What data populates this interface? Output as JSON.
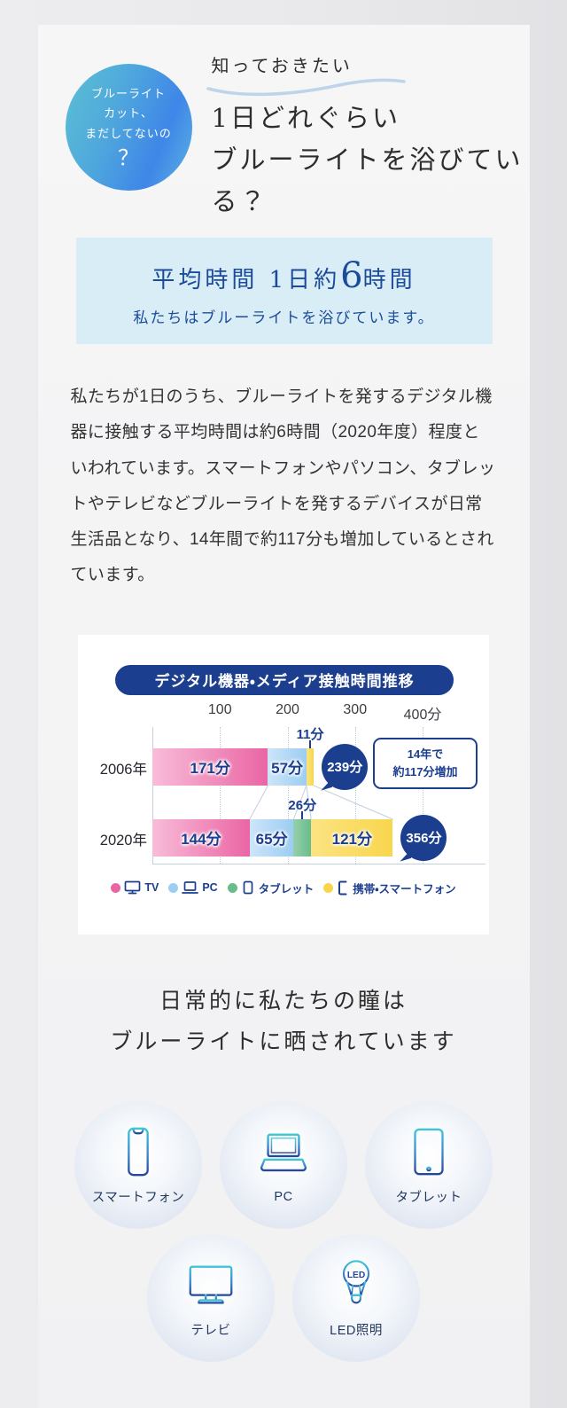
{
  "badge": {
    "line1": "ブルーライト",
    "line2": "カット、",
    "line3": "まだしてないの",
    "mark": "？"
  },
  "header": {
    "kicker": "知っておきたい",
    "title": "1日どれぐらい\nブルーライトを浴びている？"
  },
  "average_box": {
    "title_pre": "平均時間 1日約",
    "title_num": "6",
    "title_post": "時間",
    "subtitle": "私たちはブルーライトを浴びています。"
  },
  "body_paragraph": "私たちが1日のうち、ブルーライトを発するデジタル機器に接触する平均時間は約6時間（2020年度）程度といわれています。スマートフォンやパソコン、タブレットやテレビなどブルーライトを発するデバイスが日常生活品となり、14年間で約117分も増加しているとされています。",
  "chart_data": {
    "type": "bar",
    "stacked": true,
    "orientation": "horizontal",
    "title": "デジタル機器・メディア接触時間推移",
    "unit": "分",
    "xlim": [
      0,
      400
    ],
    "x_ticks": [
      100,
      200,
      300,
      400
    ],
    "categories": [
      "2006年",
      "2020年"
    ],
    "series": [
      {
        "name": "TV",
        "icon": "tv-icon",
        "color": "#ea65a4",
        "color_light": "#f8bcd8",
        "values": [
          171,
          144
        ]
      },
      {
        "name": "PC",
        "icon": "laptop-icon",
        "color": "#9ccdf2",
        "color_light": "#cde5f9",
        "values": [
          57,
          65
        ]
      },
      {
        "name": "タブレット",
        "icon": "tablet-icon",
        "color": "#69bc8c",
        "color_light": "#96cfad",
        "values": [
          0,
          26
        ]
      },
      {
        "name": "携帯・スマートフォン",
        "icon": "phone-icon",
        "color": "#f8d64c",
        "color_light": "#fbe382",
        "values": [
          11,
          121
        ]
      }
    ],
    "totals": [
      239,
      356
    ],
    "annotation": {
      "line1": "14年で",
      "line2": "約117分増加"
    }
  },
  "exposure": {
    "heading": "日常的に私たちの瞳は\nブルーライトに晒されています"
  },
  "devices": {
    "led_text": "LED",
    "items": [
      {
        "label": "スマートフォン",
        "icon": "smartphone-icon"
      },
      {
        "label": "PC",
        "icon": "laptop-icon"
      },
      {
        "label": "タブレット",
        "icon": "tablet-icon"
      },
      {
        "label": "テレビ",
        "icon": "tv-icon"
      },
      {
        "label": "LED照明",
        "icon": "led-bulb-icon"
      }
    ]
  },
  "colors": {
    "navy": "#1c3e8f",
    "box_blue": "#d9edf6",
    "box_text": "#1c4b9a",
    "connector": "#c3cede"
  }
}
